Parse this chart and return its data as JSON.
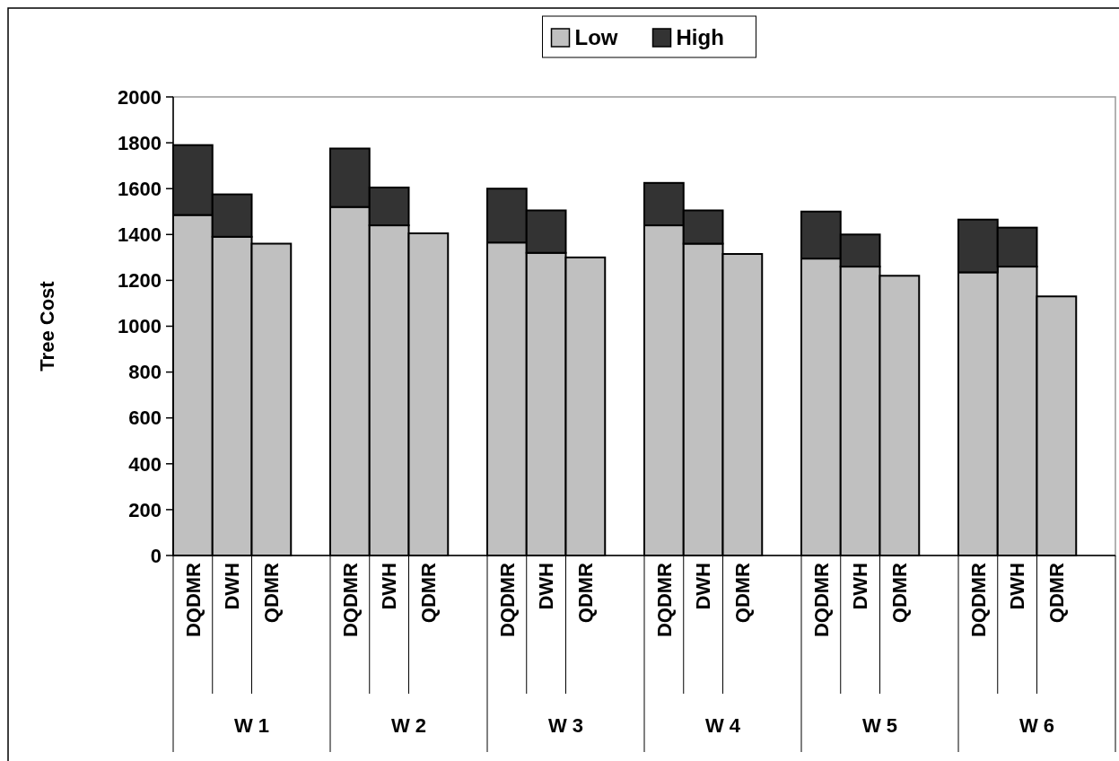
{
  "chart_data": {
    "type": "bar",
    "stacked": true,
    "ylabel": "Tree Cost",
    "categories": [
      "DQDMR",
      "DWH",
      "QDMR",
      null,
      "DQDMR",
      "DWH",
      "QDMR",
      null,
      "DQDMR",
      "DWH",
      "QDMR",
      null,
      "DQDMR",
      "DWH",
      "QDMR",
      null,
      "DQDMR",
      "DWH",
      "QDMR",
      null,
      "DQDMR",
      "DWH",
      "QDMR",
      null
    ],
    "series": [
      {
        "name": "Low",
        "color": "#c0c0c0",
        "values": [
          1485,
          1390,
          1360,
          null,
          1520,
          1440,
          1405,
          null,
          1365,
          1320,
          1300,
          null,
          1440,
          1360,
          1315,
          null,
          1295,
          1260,
          1220,
          null,
          1235,
          1260,
          1130,
          null
        ]
      },
      {
        "name": "High",
        "color": "#333333",
        "values": [
          305,
          185,
          null,
          null,
          255,
          165,
          null,
          null,
          235,
          185,
          null,
          null,
          185,
          145,
          null,
          null,
          205,
          140,
          null,
          null,
          230,
          170,
          null,
          null
        ]
      }
    ],
    "annotations": [
      "W 1",
      "W 2",
      "W 3",
      "W 4",
      "W 5",
      "W 6"
    ],
    "ylim": [
      0,
      2000
    ],
    "yticks": [
      0,
      200,
      400,
      600,
      800,
      1000,
      1200,
      1400,
      1600,
      1800,
      2000
    ],
    "grid": false,
    "legend": "top"
  }
}
